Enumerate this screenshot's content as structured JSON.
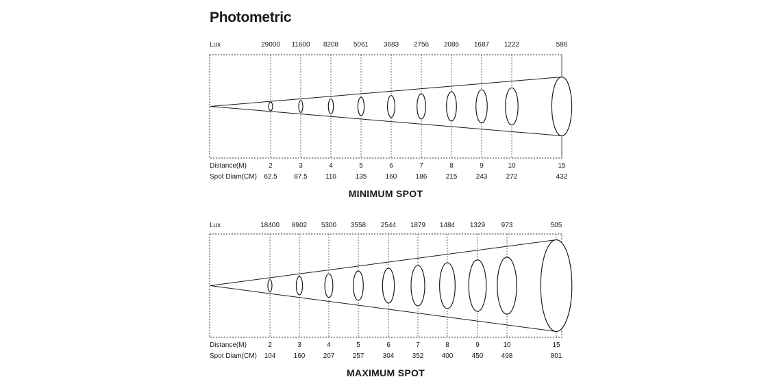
{
  "title": "Photometric",
  "panels": [
    {
      "caption": "MINIMUM SPOT",
      "lux_label": "Lux",
      "distance_label": "Distance(M)",
      "diameter_label": "Spot Diam(CM)",
      "lux": [
        "29000",
        "11600",
        "8208",
        "5061",
        "3683",
        "2756",
        "2086",
        "1687",
        "1222",
        "586"
      ],
      "distance": [
        "2",
        "3",
        "4",
        "5",
        "6",
        "7",
        "8",
        "9",
        "10",
        "15"
      ],
      "diameter": [
        "62.5",
        "87.5",
        "110",
        "135",
        "160",
        "186",
        "215",
        "243",
        "272",
        "432"
      ],
      "diameter_values": [
        62.5,
        87.5,
        110,
        135,
        160,
        186,
        215,
        243,
        272,
        432
      ]
    },
    {
      "caption": "MAXIMUM SPOT",
      "lux_label": "Lux",
      "distance_label": "Distance(M)",
      "diameter_label": "Spot Diam(CM)",
      "lux": [
        "18400",
        "8902",
        "5300",
        "3558",
        "2544",
        "1879",
        "1484",
        "1329",
        "973",
        "505"
      ],
      "distance": [
        "2",
        "3",
        "4",
        "5",
        "6",
        "7",
        "8",
        "9",
        "10",
        "15"
      ],
      "diameter": [
        "104",
        "160",
        "207",
        "257",
        "304",
        "352",
        "400",
        "450",
        "498",
        "801"
      ],
      "diameter_values": [
        104,
        160,
        207,
        257,
        304,
        352,
        400,
        450,
        498,
        801
      ]
    }
  ]
}
